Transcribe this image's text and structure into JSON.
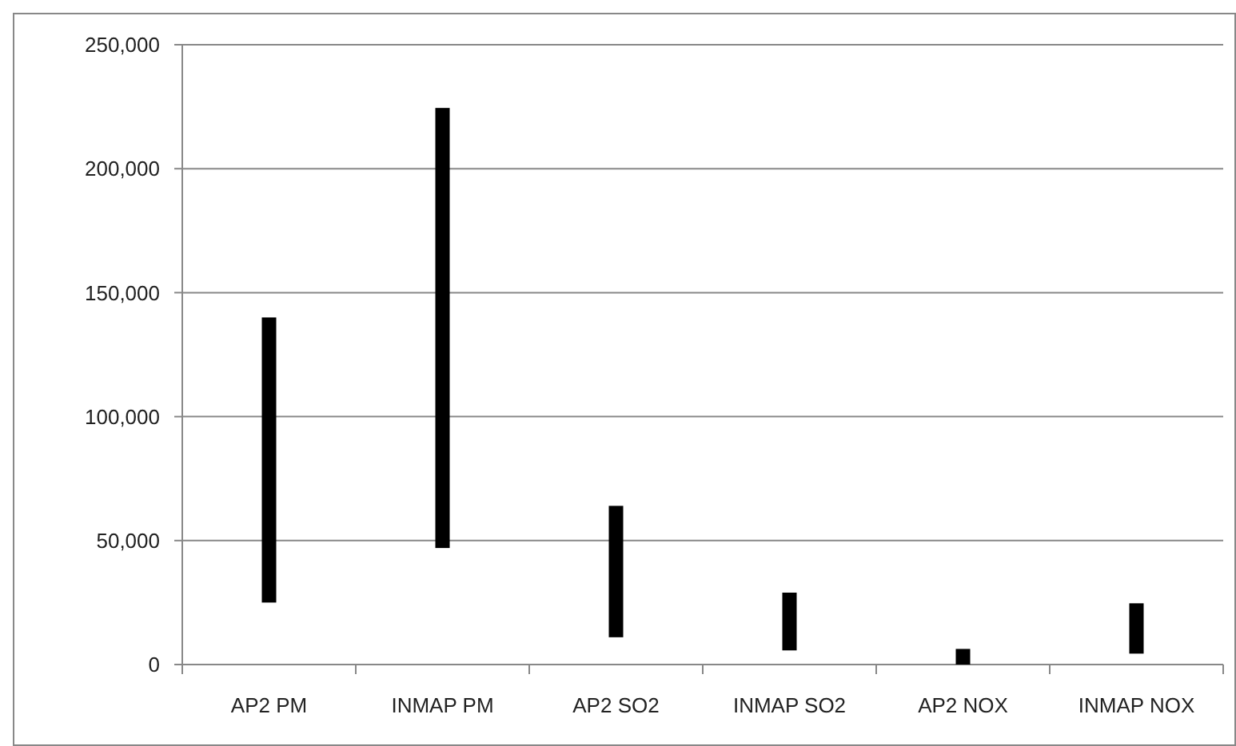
{
  "chart_data": {
    "type": "bar",
    "categories": [
      "AP2 PM",
      "INMAP PM",
      "AP2 SO2",
      "INMAP SO2",
      "AP2 NOX",
      "INMAP NOX"
    ],
    "base": [
      25000,
      47000,
      11000,
      5700,
      0,
      4400
    ],
    "values": [
      115000,
      177500,
      53000,
      23300,
      6300,
      20300
    ],
    "color": "#000000",
    "ylim": [
      0,
      250000
    ],
    "yticks": [
      {
        "value": 0,
        "label": "0"
      },
      {
        "value": 50000,
        "label": "50,000"
      },
      {
        "value": 100000,
        "label": "100,000"
      },
      {
        "value": 150000,
        "label": "150,000"
      },
      {
        "value": 200000,
        "label": "200,000"
      },
      {
        "value": 250000,
        "label": "250,000"
      }
    ],
    "grid": "y"
  }
}
